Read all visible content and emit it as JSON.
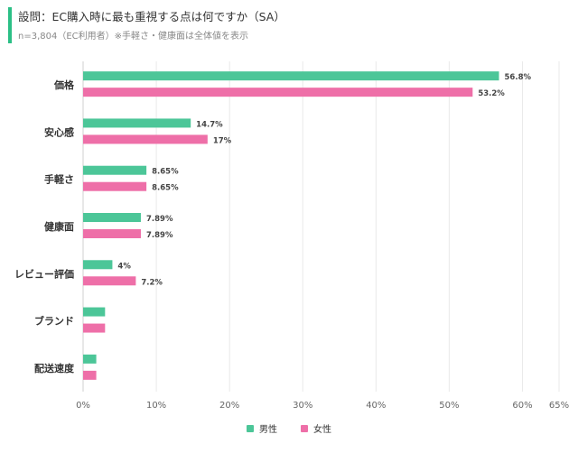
{
  "header": {
    "title": "設問：EC購入時に最も重視する点は何ですか（SA）",
    "subtitle": "n=3,804（EC利用者）※手軽さ・健康面は全体値を表示"
  },
  "colors": {
    "male": "#4cc698",
    "female": "#ee6fa8",
    "accent": "#2bbf86",
    "grid": "#e9e9e9"
  },
  "chart_data": {
    "type": "bar",
    "orientation": "horizontal",
    "categories": [
      "価格",
      "安心感",
      "手軽さ",
      "健康面",
      "レビュー評価",
      "ブランド",
      "配送速度"
    ],
    "series": [
      {
        "name": "男性",
        "values": [
          56.8,
          14.7,
          8.65,
          7.89,
          4,
          3,
          1.8
        ],
        "labels": [
          "56.8%",
          "14.7%",
          "8.65%",
          "7.89%",
          "4%",
          "",
          ""
        ]
      },
      {
        "name": "女性",
        "values": [
          53.2,
          17,
          8.65,
          7.89,
          7.2,
          3,
          1.8
        ],
        "labels": [
          "53.2%",
          "17%",
          "8.65%",
          "7.89%",
          "7.2%",
          "",
          ""
        ]
      }
    ],
    "xlim": [
      0,
      65
    ],
    "xticks": [
      0,
      10,
      20,
      30,
      40,
      50,
      60,
      65
    ],
    "xtick_labels": [
      "0%",
      "10%",
      "20%",
      "30%",
      "40%",
      "50%",
      "60%",
      "65%"
    ],
    "grid": true,
    "legend_position": "bottom-center"
  }
}
